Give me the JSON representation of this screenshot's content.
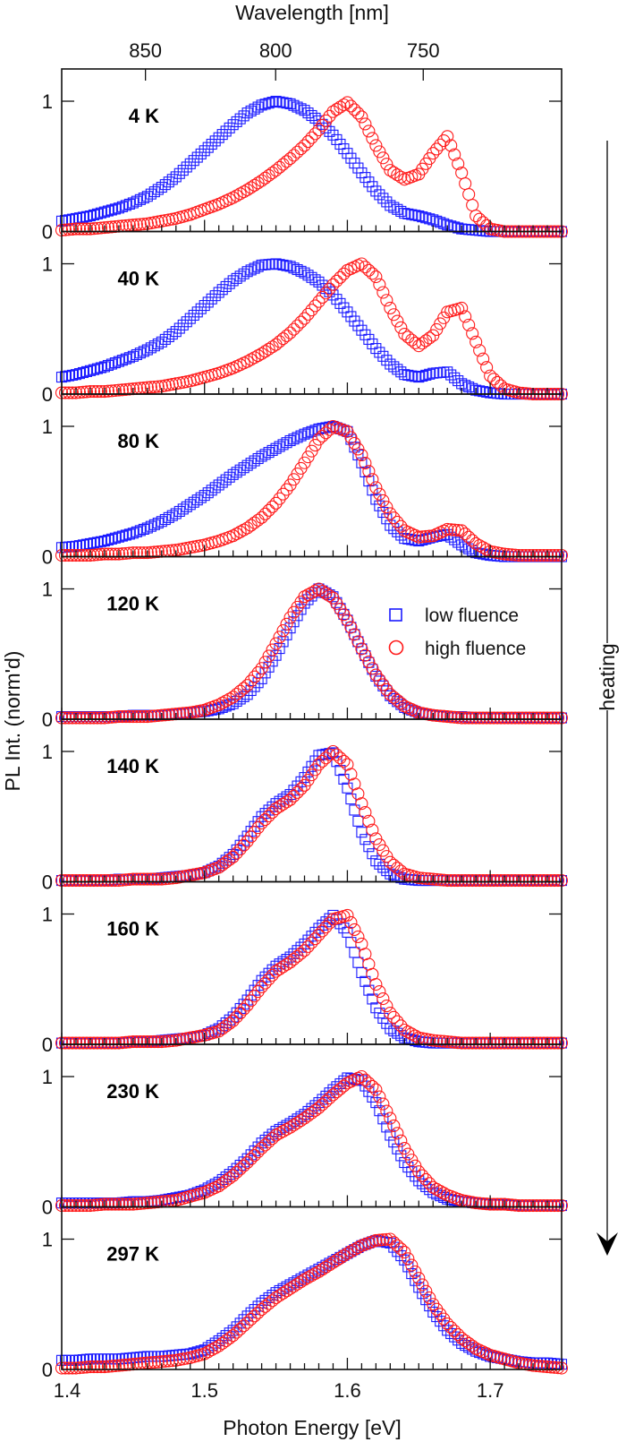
{
  "chart_data": {
    "type": "scatter",
    "title": "",
    "xlabel": "Photon Energy [eV]",
    "ylabel": "PL Int. (norm'd)",
    "top_xlabel": "Wavelength [nm]",
    "xlim": [
      1.4,
      1.75
    ],
    "ylim": [
      0,
      1.2
    ],
    "x_ticks": [
      "1.4",
      "1.5",
      "1.6",
      "1.7"
    ],
    "x_tick_values": [
      1.4,
      1.5,
      1.6,
      1.7
    ],
    "top_ticks": [
      "850",
      "800",
      "750"
    ],
    "top_tick_values_nm": [
      850,
      800,
      750
    ],
    "y_ticks": [
      "0",
      "1"
    ],
    "y_tick_values": [
      0,
      1
    ],
    "grid": false,
    "legend": {
      "placement": "inside-right (120 K panel)",
      "entries": [
        {
          "label": "low fluence",
          "marker": "square",
          "color": "#1a1aff"
        },
        {
          "label": "high fluence",
          "marker": "circle",
          "color": "#ff1a1a"
        }
      ]
    },
    "annotation": {
      "text": "heating",
      "arrow": "down"
    },
    "x": [
      1.4,
      1.41,
      1.42,
      1.43,
      1.44,
      1.45,
      1.46,
      1.47,
      1.48,
      1.49,
      1.5,
      1.51,
      1.52,
      1.53,
      1.54,
      1.55,
      1.56,
      1.57,
      1.58,
      1.59,
      1.6,
      1.61,
      1.62,
      1.63,
      1.64,
      1.65,
      1.66,
      1.67,
      1.68,
      1.69,
      1.7,
      1.71,
      1.72,
      1.73,
      1.74,
      1.75
    ],
    "panels": [
      {
        "label": "4 K",
        "series": [
          {
            "name": "low fluence",
            "values": [
              0.08,
              0.1,
              0.12,
              0.15,
              0.18,
              0.22,
              0.27,
              0.34,
              0.42,
              0.52,
              0.62,
              0.72,
              0.82,
              0.91,
              0.97,
              1.0,
              0.98,
              0.93,
              0.85,
              0.74,
              0.6,
              0.45,
              0.31,
              0.2,
              0.14,
              0.12,
              0.09,
              0.05,
              0.02,
              0.01,
              0.0,
              0.0,
              0.0,
              0.0,
              0.0,
              0.0
            ]
          },
          {
            "name": "high fluence",
            "values": [
              0.01,
              0.02,
              0.02,
              0.03,
              0.04,
              0.05,
              0.06,
              0.08,
              0.1,
              0.13,
              0.17,
              0.21,
              0.26,
              0.32,
              0.39,
              0.47,
              0.56,
              0.66,
              0.78,
              0.92,
              0.99,
              0.88,
              0.66,
              0.47,
              0.4,
              0.44,
              0.6,
              0.73,
              0.45,
              0.12,
              0.02,
              0.0,
              0.0,
              0.0,
              0.0,
              0.0
            ]
          }
        ]
      },
      {
        "label": "40 K",
        "series": [
          {
            "name": "low fluence",
            "values": [
              0.13,
              0.15,
              0.18,
              0.21,
              0.25,
              0.29,
              0.34,
              0.4,
              0.48,
              0.58,
              0.68,
              0.78,
              0.87,
              0.94,
              0.99,
              1.0,
              0.98,
              0.93,
              0.86,
              0.76,
              0.63,
              0.49,
              0.35,
              0.23,
              0.15,
              0.13,
              0.16,
              0.17,
              0.08,
              0.03,
              0.01,
              0.0,
              0.0,
              0.0,
              0.0,
              0.0
            ]
          },
          {
            "name": "high fluence",
            "values": [
              0.01,
              0.01,
              0.02,
              0.02,
              0.03,
              0.04,
              0.05,
              0.06,
              0.08,
              0.1,
              0.13,
              0.16,
              0.2,
              0.25,
              0.31,
              0.38,
              0.47,
              0.58,
              0.71,
              0.84,
              0.95,
              1.0,
              0.9,
              0.66,
              0.46,
              0.37,
              0.45,
              0.63,
              0.66,
              0.4,
              0.14,
              0.04,
              0.01,
              0.0,
              0.0,
              0.0
            ]
          }
        ]
      },
      {
        "label": "80 K",
        "series": [
          {
            "name": "low fluence",
            "values": [
              0.07,
              0.08,
              0.1,
              0.12,
              0.15,
              0.18,
              0.22,
              0.27,
              0.33,
              0.4,
              0.47,
              0.55,
              0.63,
              0.7,
              0.77,
              0.83,
              0.89,
              0.94,
              0.98,
              1.0,
              0.96,
              0.72,
              0.44,
              0.24,
              0.14,
              0.12,
              0.15,
              0.17,
              0.09,
              0.03,
              0.01,
              0.0,
              0.0,
              0.0,
              0.0,
              0.0
            ]
          },
          {
            "name": "high fluence",
            "values": [
              0.01,
              0.01,
              0.01,
              0.02,
              0.02,
              0.03,
              0.03,
              0.04,
              0.05,
              0.07,
              0.09,
              0.12,
              0.16,
              0.22,
              0.3,
              0.41,
              0.55,
              0.72,
              0.9,
              1.0,
              0.96,
              0.78,
              0.53,
              0.33,
              0.2,
              0.15,
              0.16,
              0.21,
              0.2,
              0.1,
              0.04,
              0.02,
              0.01,
              0.01,
              0.01,
              0.01
            ]
          }
        ]
      },
      {
        "label": "120 K",
        "series": [
          {
            "name": "low fluence",
            "values": [
              0.02,
              0.02,
              0.02,
              0.02,
              0.02,
              0.03,
              0.03,
              0.03,
              0.04,
              0.05,
              0.06,
              0.08,
              0.12,
              0.19,
              0.31,
              0.49,
              0.7,
              0.89,
              1.0,
              0.94,
              0.76,
              0.54,
              0.33,
              0.18,
              0.09,
              0.05,
              0.03,
              0.02,
              0.02,
              0.01,
              0.01,
              0.01,
              0.01,
              0.01,
              0.01,
              0.01
            ]
          },
          {
            "name": "high fluence",
            "values": [
              0.01,
              0.01,
              0.01,
              0.01,
              0.02,
              0.02,
              0.02,
              0.03,
              0.04,
              0.05,
              0.07,
              0.11,
              0.17,
              0.26,
              0.39,
              0.58,
              0.78,
              0.94,
              1.0,
              0.93,
              0.76,
              0.54,
              0.34,
              0.19,
              0.1,
              0.05,
              0.03,
              0.02,
              0.01,
              0.01,
              0.01,
              0.01,
              0.01,
              0.01,
              0.01,
              0.01
            ]
          }
        ]
      },
      {
        "label": "140 K",
        "series": [
          {
            "name": "low fluence",
            "values": [
              0.01,
              0.01,
              0.01,
              0.01,
              0.02,
              0.02,
              0.02,
              0.03,
              0.04,
              0.05,
              0.07,
              0.12,
              0.21,
              0.35,
              0.5,
              0.6,
              0.67,
              0.8,
              0.97,
              0.99,
              0.72,
              0.38,
              0.16,
              0.06,
              0.02,
              0.01,
              0.01,
              0.01,
              0.01,
              0.01,
              0.01,
              0.01,
              0.01,
              0.01,
              0.01,
              0.01
            ]
          },
          {
            "name": "high fluence",
            "values": [
              0.01,
              0.01,
              0.01,
              0.01,
              0.01,
              0.02,
              0.02,
              0.02,
              0.03,
              0.05,
              0.07,
              0.11,
              0.19,
              0.31,
              0.45,
              0.56,
              0.63,
              0.74,
              0.9,
              1.0,
              0.9,
              0.6,
              0.33,
              0.15,
              0.06,
              0.03,
              0.02,
              0.01,
              0.01,
              0.01,
              0.01,
              0.01,
              0.01,
              0.01,
              0.01,
              0.01
            ]
          }
        ]
      },
      {
        "label": "160 K",
        "series": [
          {
            "name": "low fluence",
            "values": [
              0.01,
              0.01,
              0.01,
              0.01,
              0.01,
              0.02,
              0.02,
              0.03,
              0.04,
              0.05,
              0.07,
              0.12,
              0.21,
              0.34,
              0.49,
              0.6,
              0.67,
              0.77,
              0.89,
              0.99,
              0.86,
              0.55,
              0.28,
              0.12,
              0.05,
              0.02,
              0.01,
              0.01,
              0.01,
              0.01,
              0.01,
              0.01,
              0.01,
              0.01,
              0.01,
              0.01
            ]
          },
          {
            "name": "high fluence",
            "values": [
              0.01,
              0.01,
              0.01,
              0.01,
              0.01,
              0.02,
              0.02,
              0.02,
              0.03,
              0.05,
              0.07,
              0.1,
              0.18,
              0.3,
              0.44,
              0.56,
              0.63,
              0.72,
              0.84,
              0.96,
              0.99,
              0.77,
              0.46,
              0.24,
              0.11,
              0.05,
              0.03,
              0.02,
              0.01,
              0.01,
              0.01,
              0.01,
              0.01,
              0.01,
              0.01,
              0.01
            ]
          }
        ]
      },
      {
        "label": "230 K",
        "series": [
          {
            "name": "low fluence",
            "values": [
              0.03,
              0.03,
              0.03,
              0.03,
              0.03,
              0.04,
              0.04,
              0.05,
              0.07,
              0.09,
              0.13,
              0.19,
              0.27,
              0.37,
              0.49,
              0.58,
              0.64,
              0.71,
              0.8,
              0.9,
              0.99,
              0.97,
              0.8,
              0.55,
              0.34,
              0.2,
              0.11,
              0.06,
              0.04,
              0.03,
              0.02,
              0.02,
              0.01,
              0.01,
              0.01,
              0.01
            ]
          },
          {
            "name": "high fluence",
            "values": [
              0.01,
              0.01,
              0.01,
              0.02,
              0.02,
              0.02,
              0.03,
              0.04,
              0.05,
              0.08,
              0.11,
              0.16,
              0.24,
              0.34,
              0.45,
              0.55,
              0.61,
              0.68,
              0.76,
              0.86,
              0.95,
              1.0,
              0.9,
              0.68,
              0.45,
              0.27,
              0.15,
              0.09,
              0.05,
              0.03,
              0.02,
              0.02,
              0.01,
              0.01,
              0.01,
              0.01
            ]
          }
        ]
      },
      {
        "label": "297 K",
        "series": [
          {
            "name": "low fluence",
            "values": [
              0.07,
              0.07,
              0.08,
              0.08,
              0.08,
              0.09,
              0.1,
              0.1,
              0.11,
              0.12,
              0.15,
              0.22,
              0.3,
              0.41,
              0.51,
              0.59,
              0.65,
              0.71,
              0.77,
              0.83,
              0.89,
              0.95,
              0.99,
              0.97,
              0.84,
              0.63,
              0.44,
              0.3,
              0.2,
              0.14,
              0.1,
              0.08,
              0.06,
              0.05,
              0.05,
              0.04
            ]
          },
          {
            "name": "high fluence",
            "values": [
              0.01,
              0.01,
              0.02,
              0.02,
              0.03,
              0.04,
              0.05,
              0.06,
              0.07,
              0.09,
              0.12,
              0.18,
              0.26,
              0.36,
              0.46,
              0.55,
              0.62,
              0.69,
              0.75,
              0.82,
              0.89,
              0.95,
              0.99,
              1.0,
              0.9,
              0.7,
              0.5,
              0.35,
              0.24,
              0.16,
              0.11,
              0.08,
              0.05,
              0.03,
              0.02,
              0.01
            ]
          }
        ]
      }
    ]
  }
}
